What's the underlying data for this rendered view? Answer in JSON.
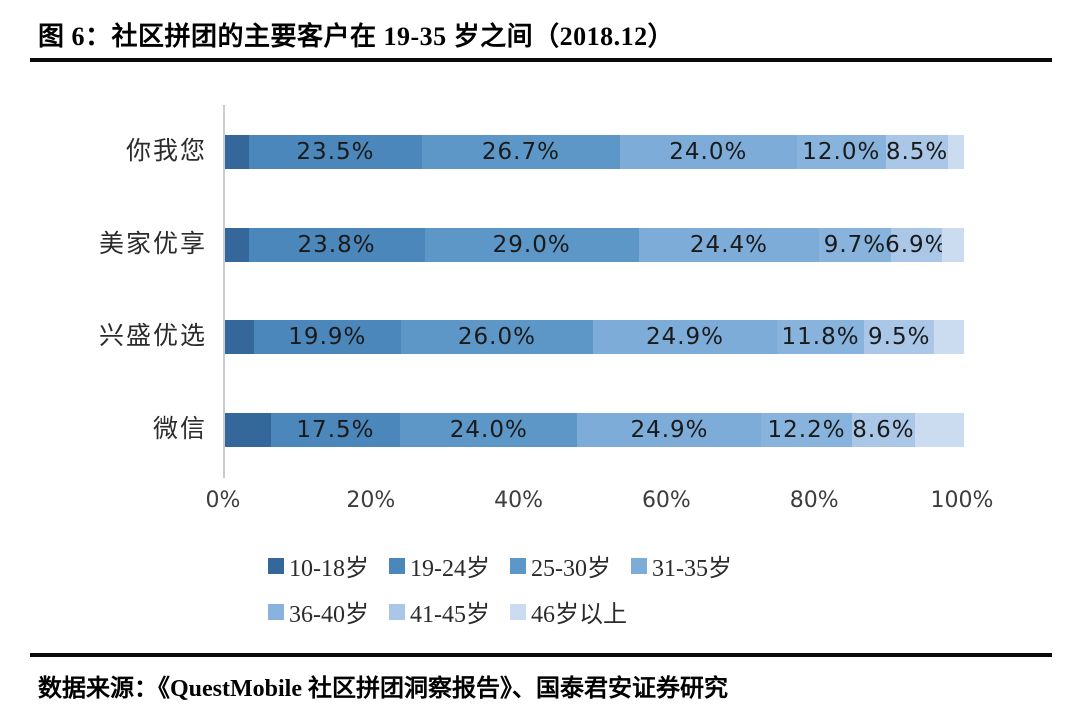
{
  "title": "图 6：社区拼团的主要客户在 19-35 岁之间（2018.12）",
  "source": "数据来源：《QuestMobile 社区拼团洞察报告》、国泰君安证券研究",
  "chart_data": {
    "type": "bar",
    "variant": "horizontal-stacked",
    "title": "图 6：社区拼团的主要客户在 19-35 岁之间（2018.12）",
    "categories": [
      "你我您",
      "美家优享",
      "兴盛优选",
      "微信"
    ],
    "series": [
      {
        "name": "10-18岁",
        "color": "#34689a",
        "show_labels": false,
        "values_estimated": true,
        "values": [
          3.2,
          3.2,
          3.9,
          6.2
        ]
      },
      {
        "name": "19-24岁",
        "color": "#4b87bb",
        "show_labels": true,
        "values_estimated": false,
        "values": [
          23.5,
          23.8,
          19.9,
          17.5
        ]
      },
      {
        "name": "25-30岁",
        "color": "#5d97c8",
        "show_labels": true,
        "values_estimated": false,
        "values": [
          26.7,
          29.0,
          26.0,
          24.0
        ]
      },
      {
        "name": "31-35岁",
        "color": "#7dacd9",
        "show_labels": true,
        "values_estimated": false,
        "values": [
          24.0,
          24.4,
          24.9,
          24.9
        ]
      },
      {
        "name": "36-40岁",
        "color": "#87b3dd",
        "show_labels": true,
        "values_estimated": false,
        "values": [
          12.0,
          9.7,
          11.8,
          12.2
        ]
      },
      {
        "name": "41-45岁",
        "color": "#aac7e8",
        "show_labels": true,
        "values_estimated": false,
        "values": [
          8.5,
          6.9,
          9.5,
          8.6
        ]
      },
      {
        "name": "46岁以上",
        "color": "#cbdcf0",
        "show_labels": false,
        "values_estimated": true,
        "values": [
          2.1,
          3.0,
          4.0,
          6.6
        ]
      }
    ],
    "x_ticks": [
      "0%",
      "20%",
      "40%",
      "60%",
      "80%",
      "100%"
    ],
    "xlim": [
      0,
      100
    ],
    "label_suffix": "%",
    "grid": false,
    "legend_rows": [
      [
        "10-18岁",
        "19-24岁",
        "25-30岁",
        "31-35岁"
      ],
      [
        "36-40岁",
        "41-45岁",
        "46岁以上"
      ]
    ],
    "legend_position": "bottom-left"
  }
}
